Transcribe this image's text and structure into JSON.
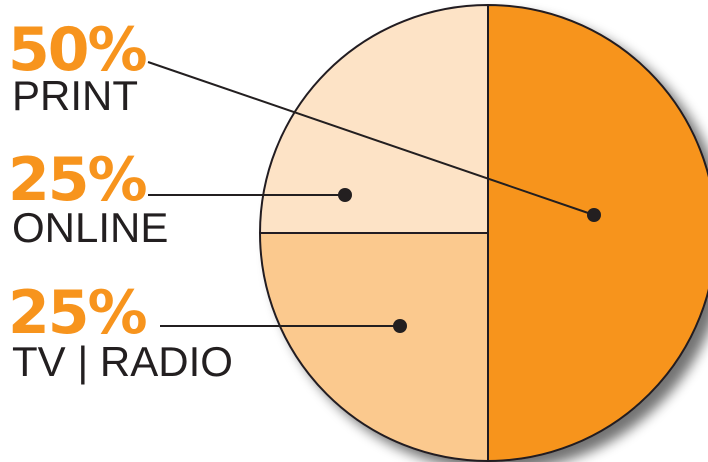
{
  "chart_data": {
    "type": "pie",
    "slices": [
      {
        "label": "PRINT",
        "value": 50,
        "value_label": "50%",
        "color": "#f7941d"
      },
      {
        "label": "ONLINE",
        "value": 25,
        "value_label": "25%",
        "color": "#fbc98e"
      },
      {
        "label": "TV | RADIO",
        "value": 25,
        "value_label": "25%",
        "color": "#fde3c6"
      }
    ],
    "title": "",
    "legend_placement": "left",
    "label_color": "#f7941d",
    "text_color": "#231f20",
    "outline_color": "#231f20"
  }
}
